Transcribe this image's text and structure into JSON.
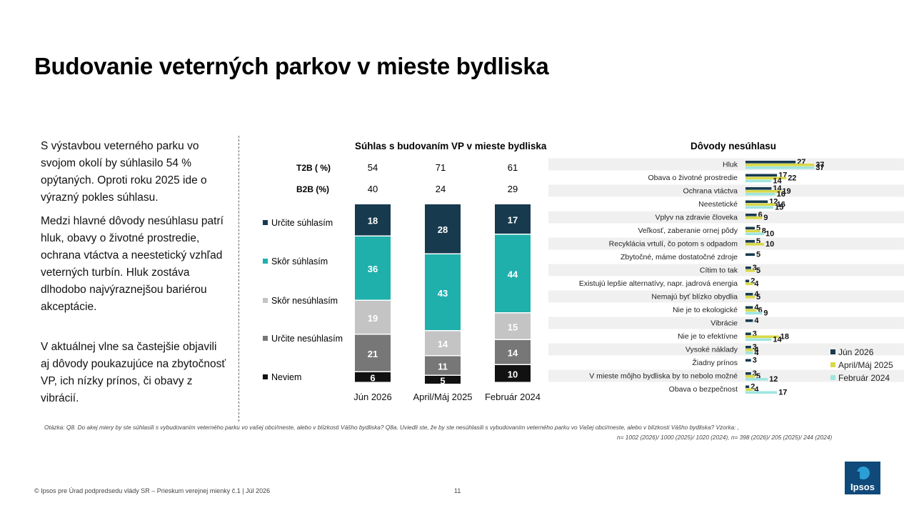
{
  "page": {
    "title": "Budovanie veterných parkov v mieste bydliska",
    "paragraphs": [
      "S výstavbou veterného parku vo svojom okolí by súhlasilo 54 % opýtaných. Oproti roku 2025 ide o výrazný pokles súhlasu.",
      "Medzi hlavné dôvody nesúhlasu patrí hluk, obavy o životné prostredie, ochrana vtáctva a neestetický vzhľad veterných turbín. Hluk zostáva dlhodobo najvýraznejšou bariérou akceptácie.",
      "V aktuálnej vlne sa častejšie objavili aj dôvody poukazujúce na zbytočnosť VP, ich nízky prínos, či obavy z vibrácií."
    ],
    "footnote_line1": "Otázka: Q8. Do akej miery by ste súhlasili s vybudovaním veterného parku vo vašej obci/meste, alebo v blízkosti Vášho bydliska? Q8a. Uviedli ste, že by ste nesúhlasili s vybudovaním veterného parku vo Vašej obci/meste, alebo v blízkosti Vášho bydliska? Vzorka: ,",
    "footnote_line2": "n= 1002 (2026)/ 1000 (2025)/ 1020 (2024), n= 398 (2026)/ 205 (2025)/ 244 (2024)",
    "footer": "© Ipsos pre Úrad podpredsedu vlády SR – Prieskum verejnej mienky č.1 | Júl 2026",
    "page_number": "11",
    "logo_text": "Ipsos"
  },
  "chart_data": [
    {
      "type": "bar",
      "stacked": true,
      "title": "Súhlas s budovaním VP v mieste bydliska",
      "categories": [
        "Jún 2026",
        "April/Máj 2025",
        "Február 2024"
      ],
      "summary_rows": [
        {
          "label": "T2B ( %)",
          "values": [
            54,
            71,
            61
          ]
        },
        {
          "label": "B2B (%)",
          "values": [
            40,
            24,
            29
          ]
        }
      ],
      "series": [
        {
          "name": "Určite súhlasím",
          "color": "#173a4e",
          "values": [
            18,
            28,
            17
          ]
        },
        {
          "name": "Skôr súhlasím",
          "color": "#1fb0ac",
          "values": [
            36,
            43,
            44
          ]
        },
        {
          "name": "Skôr nesúhlasím",
          "color": "#c4c4c4",
          "values": [
            19,
            14,
            15
          ]
        },
        {
          "name": "Určite nesúhlasím",
          "color": "#777777",
          "values": [
            21,
            11,
            14
          ]
        },
        {
          "name": "Neviem",
          "color": "#111111",
          "values": [
            6,
            5,
            10
          ]
        }
      ]
    },
    {
      "type": "bar",
      "orientation": "horizontal",
      "title": "Dôvody nesúhlasu",
      "legend_position": "right",
      "categories": [
        "Hluk",
        "Obava o životné prostredie",
        "Ochrana vtáctva",
        "Neestetické",
        "Vplyv na zdravie človeka",
        "Veľkosť, zaberanie ornej pôdy",
        "Recyklácia vrtulí, čo potom s odpadom",
        "Zbytočné, máme dostatočné zdroje",
        "Cítim to tak",
        "Existujú lepšie alternatívy, napr. jadrová energia",
        "Nemajú byť blízko obydlia",
        "Nie je to ekologické",
        "Vibrácie",
        "Nie je to efektívne",
        "Vysoké náklady",
        "Žiadny prínos",
        "V mieste môjho bydliska by to nebolo možné",
        "Obava o bezpečnost"
      ],
      "series": [
        {
          "name": "Jún 2026",
          "color": "#173a4e",
          "values": [
            27,
            17,
            14,
            12,
            6,
            5,
            5,
            5,
            3,
            2,
            4,
            4,
            4,
            3,
            3,
            3,
            3,
            2
          ]
        },
        {
          "name": "April/Máj 2025",
          "color": "#d9d94a",
          "values": [
            37,
            22,
            19,
            16,
            9,
            8,
            10,
            null,
            5,
            4,
            5,
            6,
            null,
            18,
            4,
            null,
            5,
            4
          ]
        },
        {
          "name": "Február 2024",
          "color": "#9ee5e0",
          "values": [
            37,
            14,
            16,
            15,
            null,
            10,
            null,
            null,
            null,
            null,
            null,
            9,
            null,
            14,
            4,
            null,
            12,
            17
          ]
        }
      ]
    }
  ]
}
